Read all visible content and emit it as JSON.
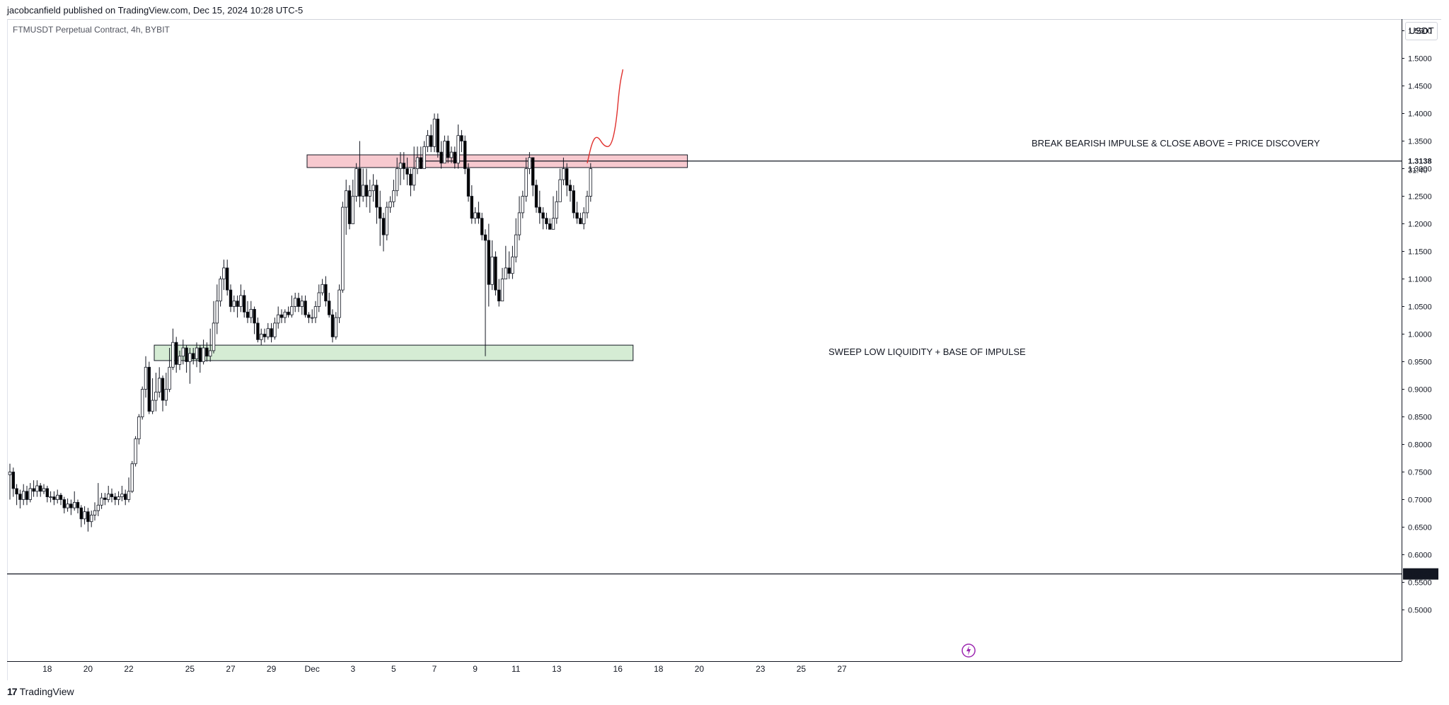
{
  "header": {
    "published": "jacobcanfield published on TradingView.com, Dec 15, 2024 10:28 UTC-5"
  },
  "symbol_label": "FTMUSDT Perpetual Contract, 4h, BYBIT",
  "currency_button": "USDT",
  "footer": {
    "brand": "TradingView",
    "brand_mark": "17"
  },
  "colors": {
    "candle_up_fill": "#ffffff",
    "candle_down_fill": "#000000",
    "resistance_zone": "#f7c9cf",
    "support_zone": "#d5ecd4",
    "projection": "#e0312e"
  },
  "chart_data": {
    "type": "candlestick",
    "title": "",
    "ylim": [
      0.455,
      1.6
    ],
    "y_ticks": [
      "0.5000",
      "0.5500",
      "0.6000",
      "0.6500",
      "0.7000",
      "0.7500",
      "0.8000",
      "0.8500",
      "0.9000",
      "0.9500",
      "1.0000",
      "1.0500",
      "1.1000",
      "1.1500",
      "1.2000",
      "1.2500",
      "1.3000",
      "1.3500",
      "1.4000",
      "1.4500",
      "1.5000",
      "1.5500"
    ],
    "x_ticks": [
      {
        "label": "18",
        "i": 11
      },
      {
        "label": "20",
        "i": 23
      },
      {
        "label": "22",
        "i": 35
      },
      {
        "label": "25",
        "i": 53
      },
      {
        "label": "27",
        "i": 65
      },
      {
        "label": "29",
        "i": 77
      },
      {
        "label": "Dec",
        "i": 89
      },
      {
        "label": "3",
        "i": 101
      },
      {
        "label": "5",
        "i": 113
      },
      {
        "label": "7",
        "i": 125
      },
      {
        "label": "9",
        "i": 137
      },
      {
        "label": "11",
        "i": 149
      },
      {
        "label": "13",
        "i": 161
      },
      {
        "label": "16",
        "i": 179
      },
      {
        "label": "18",
        "i": 191
      },
      {
        "label": "20",
        "i": 203
      },
      {
        "label": "23",
        "i": 221
      },
      {
        "label": "25",
        "i": 233
      },
      {
        "label": "27",
        "i": 245
      }
    ],
    "price_label": "1.3138",
    "countdown": "31:40",
    "low_line_label": "0.5652",
    "low_line_value": 0.5652,
    "resistance_line_value": 1.3138,
    "zones": [
      {
        "name": "resistance",
        "from_i": 87.5,
        "to_i": 199.5,
        "low": 1.302,
        "high": 1.325,
        "label": "BREAK BEARISH IMPULSE & CLOSE ABOVE = PRICE DISCOVERY"
      },
      {
        "name": "support",
        "from_i": 42.5,
        "to_i": 183.5,
        "low": 0.952,
        "high": 0.98,
        "label": "SWEEP LOW LIQUIDITY + BASE OF IMPULSE"
      }
    ],
    "projection": [
      [
        170,
        1.31
      ],
      [
        171.5,
        1.35
      ],
      [
        173,
        1.36
      ],
      [
        175,
        1.34
      ],
      [
        177,
        1.34
      ],
      [
        178.5,
        1.38
      ],
      [
        179.5,
        1.45
      ],
      [
        180.5,
        1.48
      ]
    ],
    "candles": [
      [
        0.745,
        0.75,
        0.765,
        0.7
      ],
      [
        0.75,
        0.72,
        0.758,
        0.705
      ],
      [
        0.72,
        0.71,
        0.728,
        0.69
      ],
      [
        0.71,
        0.7,
        0.718,
        0.684
      ],
      [
        0.7,
        0.715,
        0.728,
        0.69
      ],
      [
        0.715,
        0.7,
        0.725,
        0.69
      ],
      [
        0.7,
        0.72,
        0.73,
        0.695
      ],
      [
        0.72,
        0.715,
        0.735,
        0.705
      ],
      [
        0.715,
        0.725,
        0.735,
        0.705
      ],
      [
        0.725,
        0.715,
        0.73,
        0.705
      ],
      [
        0.715,
        0.72,
        0.728,
        0.71
      ],
      [
        0.72,
        0.705,
        0.725,
        0.695
      ],
      [
        0.705,
        0.705,
        0.715,
        0.695
      ],
      [
        0.705,
        0.7,
        0.715,
        0.69
      ],
      [
        0.7,
        0.708,
        0.718,
        0.693
      ],
      [
        0.708,
        0.7,
        0.712,
        0.69
      ],
      [
        0.7,
        0.685,
        0.705,
        0.675
      ],
      [
        0.685,
        0.692,
        0.702,
        0.678
      ],
      [
        0.692,
        0.685,
        0.7,
        0.672
      ],
      [
        0.685,
        0.695,
        0.715,
        0.68
      ],
      [
        0.695,
        0.685,
        0.7,
        0.675
      ],
      [
        0.685,
        0.665,
        0.69,
        0.65
      ],
      [
        0.665,
        0.678,
        0.688,
        0.655
      ],
      [
        0.678,
        0.66,
        0.685,
        0.642
      ],
      [
        0.66,
        0.672,
        0.68,
        0.65
      ],
      [
        0.672,
        0.68,
        0.695,
        0.662
      ],
      [
        0.68,
        0.69,
        0.73,
        0.67
      ],
      [
        0.69,
        0.703,
        0.712,
        0.683
      ],
      [
        0.703,
        0.7,
        0.712,
        0.69
      ],
      [
        0.7,
        0.71,
        0.725,
        0.695
      ],
      [
        0.71,
        0.705,
        0.72,
        0.695
      ],
      [
        0.705,
        0.7,
        0.712,
        0.69
      ],
      [
        0.7,
        0.705,
        0.715,
        0.69
      ],
      [
        0.705,
        0.71,
        0.725,
        0.697
      ],
      [
        0.71,
        0.7,
        0.718,
        0.69
      ],
      [
        0.7,
        0.715,
        0.74,
        0.695
      ],
      [
        0.715,
        0.765,
        0.77,
        0.712
      ],
      [
        0.765,
        0.81,
        0.815,
        0.76
      ],
      [
        0.81,
        0.85,
        0.855,
        0.8
      ],
      [
        0.85,
        0.9,
        0.905,
        0.845
      ],
      [
        0.9,
        0.94,
        0.96,
        0.885
      ],
      [
        0.94,
        0.86,
        0.95,
        0.855
      ],
      [
        0.86,
        0.88,
        0.92,
        0.855
      ],
      [
        0.88,
        0.895,
        0.93,
        0.86
      ],
      [
        0.895,
        0.92,
        0.94,
        0.885
      ],
      [
        0.92,
        0.88,
        0.925,
        0.86
      ],
      [
        0.88,
        0.9,
        0.93,
        0.87
      ],
      [
        0.9,
        0.94,
        0.975,
        0.895
      ],
      [
        0.94,
        0.985,
        1.01,
        0.935
      ],
      [
        0.985,
        0.945,
        0.995,
        0.93
      ],
      [
        0.945,
        0.96,
        0.97,
        0.935
      ],
      [
        0.96,
        0.975,
        0.99,
        0.945
      ],
      [
        0.975,
        0.95,
        0.98,
        0.93
      ],
      [
        0.95,
        0.965,
        0.975,
        0.91
      ],
      [
        0.965,
        0.955,
        0.975,
        0.945
      ],
      [
        0.955,
        0.975,
        0.985,
        0.94
      ],
      [
        0.975,
        0.95,
        0.98,
        0.93
      ],
      [
        0.95,
        0.975,
        0.99,
        0.945
      ],
      [
        0.975,
        0.96,
        0.985,
        0.95
      ],
      [
        0.96,
        0.97,
        1.01,
        0.95
      ],
      [
        0.97,
        1.02,
        1.06,
        0.965
      ],
      [
        1.02,
        1.06,
        1.09,
        1.0
      ],
      [
        1.06,
        1.1,
        1.105,
        1.05
      ],
      [
        1.1,
        1.12,
        1.135,
        1.08
      ],
      [
        1.12,
        1.08,
        1.135,
        1.07
      ],
      [
        1.08,
        1.05,
        1.09,
        1.04
      ],
      [
        1.05,
        1.06,
        1.07,
        1.04
      ],
      [
        1.06,
        1.05,
        1.07,
        1.03
      ],
      [
        1.05,
        1.07,
        1.09,
        1.04
      ],
      [
        1.07,
        1.04,
        1.08,
        1.03
      ],
      [
        1.04,
        1.03,
        1.06,
        1.02
      ],
      [
        1.03,
        1.045,
        1.06,
        1.02
      ],
      [
        1.045,
        1.02,
        1.05,
        1.0
      ],
      [
        1.02,
        0.99,
        1.03,
        0.985
      ],
      [
        0.99,
        1.0,
        1.01,
        0.98
      ],
      [
        1.0,
        0.995,
        1.01,
        0.985
      ],
      [
        0.995,
        1.01,
        1.02,
        0.99
      ],
      [
        1.01,
        0.995,
        1.02,
        0.985
      ],
      [
        0.995,
        1.02,
        1.03,
        0.99
      ],
      [
        1.02,
        1.035,
        1.05,
        1.01
      ],
      [
        1.035,
        1.03,
        1.045,
        1.02
      ],
      [
        1.03,
        1.04,
        1.045,
        1.02
      ],
      [
        1.04,
        1.035,
        1.05,
        1.03
      ],
      [
        1.035,
        1.05,
        1.07,
        1.03
      ],
      [
        1.05,
        1.065,
        1.075,
        1.04
      ],
      [
        1.065,
        1.05,
        1.075,
        1.04
      ],
      [
        1.05,
        1.06,
        1.07,
        1.035
      ],
      [
        1.06,
        1.035,
        1.07,
        1.03
      ],
      [
        1.035,
        1.03,
        1.04,
        1.02
      ],
      [
        1.03,
        1.03,
        1.045,
        1.02
      ],
      [
        1.03,
        1.05,
        1.06,
        1.02
      ],
      [
        1.05,
        1.075,
        1.09,
        1.04
      ],
      [
        1.075,
        1.09,
        1.1,
        1.07
      ],
      [
        1.09,
        1.06,
        1.105,
        1.05
      ],
      [
        1.06,
        1.035,
        1.075,
        1.03
      ],
      [
        1.035,
        0.995,
        1.045,
        0.985
      ],
      [
        0.995,
        1.03,
        1.04,
        0.99
      ],
      [
        1.03,
        1.08,
        1.09,
        1.02
      ],
      [
        1.08,
        1.23,
        1.24,
        1.075
      ],
      [
        1.23,
        1.26,
        1.28,
        1.18
      ],
      [
        1.26,
        1.2,
        1.27,
        1.19
      ],
      [
        1.2,
        1.25,
        1.28,
        1.2
      ],
      [
        1.25,
        1.3,
        1.31,
        1.24
      ],
      [
        1.3,
        1.25,
        1.35,
        1.23
      ],
      [
        1.25,
        1.27,
        1.3,
        1.24
      ],
      [
        1.27,
        1.25,
        1.3,
        1.23
      ],
      [
        1.25,
        1.26,
        1.28,
        1.22
      ],
      [
        1.26,
        1.27,
        1.29,
        1.24
      ],
      [
        1.27,
        1.23,
        1.28,
        1.2
      ],
      [
        1.23,
        1.21,
        1.26,
        1.16
      ],
      [
        1.21,
        1.18,
        1.22,
        1.15
      ],
      [
        1.18,
        1.23,
        1.24,
        1.17
      ],
      [
        1.23,
        1.24,
        1.25,
        1.22
      ],
      [
        1.24,
        1.26,
        1.28,
        1.23
      ],
      [
        1.26,
        1.3,
        1.32,
        1.25
      ],
      [
        1.3,
        1.31,
        1.33,
        1.27
      ],
      [
        1.31,
        1.3,
        1.33,
        1.28
      ],
      [
        1.3,
        1.29,
        1.32,
        1.27
      ],
      [
        1.29,
        1.27,
        1.3,
        1.25
      ],
      [
        1.27,
        1.3,
        1.34,
        1.26
      ],
      [
        1.3,
        1.32,
        1.34,
        1.29
      ],
      [
        1.32,
        1.3,
        1.34,
        1.3
      ],
      [
        1.3,
        1.34,
        1.35,
        1.3
      ],
      [
        1.34,
        1.36,
        1.37,
        1.33
      ],
      [
        1.36,
        1.34,
        1.38,
        1.33
      ],
      [
        1.34,
        1.39,
        1.4,
        1.33
      ],
      [
        1.39,
        1.33,
        1.4,
        1.32
      ],
      [
        1.33,
        1.31,
        1.35,
        1.3
      ],
      [
        1.31,
        1.35,
        1.36,
        1.31
      ],
      [
        1.35,
        1.32,
        1.36,
        1.31
      ],
      [
        1.32,
        1.33,
        1.34,
        1.31
      ],
      [
        1.33,
        1.31,
        1.34,
        1.3
      ],
      [
        1.31,
        1.36,
        1.38,
        1.3
      ],
      [
        1.36,
        1.35,
        1.37,
        1.33
      ],
      [
        1.35,
        1.3,
        1.36,
        1.29
      ],
      [
        1.3,
        1.25,
        1.31,
        1.24
      ],
      [
        1.25,
        1.21,
        1.27,
        1.2
      ],
      [
        1.21,
        1.22,
        1.23,
        1.2
      ],
      [
        1.22,
        1.21,
        1.24,
        1.2
      ],
      [
        1.21,
        1.18,
        1.22,
        1.17
      ],
      [
        1.18,
        1.17,
        1.19,
        0.96
      ],
      [
        1.17,
        1.09,
        1.2,
        1.05
      ],
      [
        1.09,
        1.14,
        1.17,
        1.08
      ],
      [
        1.14,
        1.08,
        1.15,
        1.07
      ],
      [
        1.08,
        1.06,
        1.1,
        1.05
      ],
      [
        1.06,
        1.1,
        1.12,
        1.06
      ],
      [
        1.1,
        1.12,
        1.16,
        1.1
      ],
      [
        1.12,
        1.11,
        1.15,
        1.1
      ],
      [
        1.11,
        1.14,
        1.16,
        1.1
      ],
      [
        1.14,
        1.18,
        1.21,
        1.13
      ],
      [
        1.18,
        1.22,
        1.25,
        1.17
      ],
      [
        1.22,
        1.25,
        1.26,
        1.21
      ],
      [
        1.25,
        1.3,
        1.32,
        1.24
      ],
      [
        1.3,
        1.32,
        1.33,
        1.29
      ],
      [
        1.32,
        1.27,
        1.32,
        1.25
      ],
      [
        1.27,
        1.23,
        1.28,
        1.22
      ],
      [
        1.23,
        1.22,
        1.26,
        1.2
      ],
      [
        1.22,
        1.21,
        1.23,
        1.19
      ],
      [
        1.21,
        1.2,
        1.22,
        1.19
      ],
      [
        1.2,
        1.19,
        1.21,
        1.19
      ],
      [
        1.19,
        1.21,
        1.25,
        1.19
      ],
      [
        1.21,
        1.24,
        1.26,
        1.2
      ],
      [
        1.24,
        1.28,
        1.3,
        1.24
      ],
      [
        1.28,
        1.3,
        1.32,
        1.27
      ],
      [
        1.3,
        1.27,
        1.31,
        1.25
      ],
      [
        1.27,
        1.26,
        1.28,
        1.24
      ],
      [
        1.26,
        1.22,
        1.27,
        1.21
      ],
      [
        1.22,
        1.21,
        1.24,
        1.2
      ],
      [
        1.21,
        1.2,
        1.22,
        1.2
      ],
      [
        1.2,
        1.22,
        1.23,
        1.19
      ],
      [
        1.22,
        1.25,
        1.26,
        1.21
      ],
      [
        1.25,
        1.3,
        1.31,
        1.24
      ]
    ]
  }
}
